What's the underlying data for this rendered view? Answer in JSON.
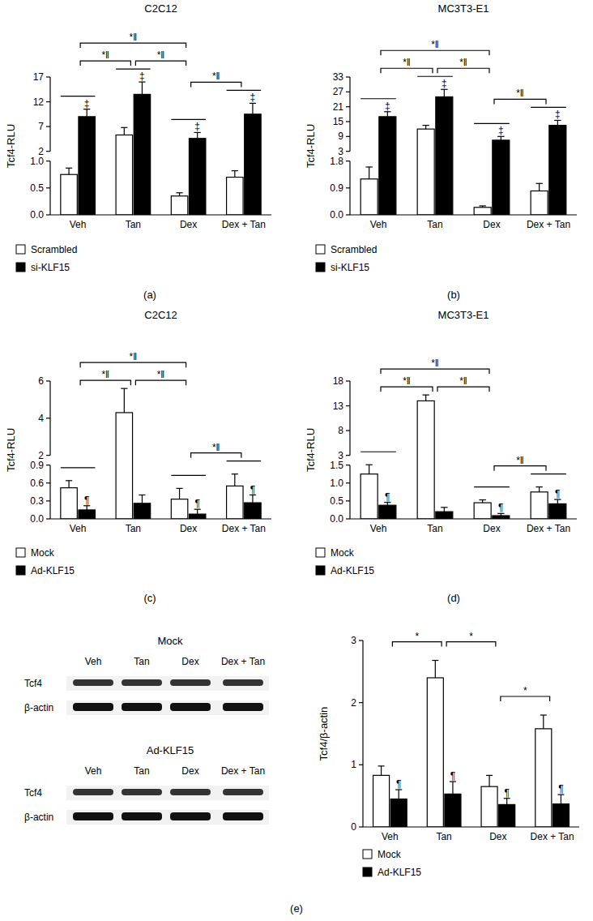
{
  "chart_data": [
    {
      "type": "bar",
      "panel_label": "(a)",
      "title": "C2C12",
      "y_label": "Tcf4-RLU",
      "categories": [
        "Veh",
        "Tan",
        "Dex",
        "Dex + Tan"
      ],
      "ylim": [
        0,
        17
      ],
      "axis_break": [
        1,
        2
      ],
      "yticks": [
        {
          "value": 0,
          "label": "0.0"
        },
        {
          "value": 0.5,
          "label": "0.5"
        },
        {
          "value": 1,
          "label": "1.0"
        },
        2,
        7,
        12,
        17
      ],
      "legend": "bottom left",
      "series": [
        {
          "name": "Scrambled",
          "color": "#ffffff",
          "values": [
            0.75,
            5.3,
            0.35,
            0.7
          ],
          "errors": [
            0.12,
            1.5,
            0.06,
            0.12
          ]
        },
        {
          "name": "si-KLF15",
          "color": "#000000",
          "values": [
            9,
            13.5,
            4.6,
            9.5
          ],
          "errors": [
            1.5,
            2.5,
            1.2,
            2.2
          ],
          "significance": [
            "‡",
            "‡",
            "‡",
            "‡"
          ]
        }
      ],
      "comparisons": [
        {
          "between": [
            "Veh",
            "Dex"
          ],
          "label": "*‖"
        },
        {
          "between": [
            "Veh",
            "Tan"
          ],
          "label": "*‖"
        },
        {
          "between": [
            "Tan",
            "Dex"
          ],
          "label": "*‖"
        },
        {
          "between": [
            "Dex",
            "Dex + Tan"
          ],
          "label": "*‖"
        }
      ]
    },
    {
      "type": "bar",
      "panel_label": "(b)",
      "title": "MC3T3-E1",
      "y_label": "Tcf4-RLU",
      "categories": [
        "Veh",
        "Tan",
        "Dex",
        "Dex + Tan"
      ],
      "ylim": [
        0,
        33
      ],
      "axis_break": [
        1.8,
        3
      ],
      "yticks": [
        {
          "value": 0,
          "label": "0.0"
        },
        {
          "value": 0.9,
          "label": "0.9"
        },
        {
          "value": 1.8,
          "label": "1.8"
        },
        3,
        9,
        15,
        21,
        27,
        33
      ],
      "legend": "bottom left",
      "series": [
        {
          "name": "Scrambled",
          "color": "#ffffff",
          "values": [
            1.2,
            12,
            0.25,
            0.8
          ],
          "errors": [
            0.4,
            1.5,
            0.05,
            0.25
          ]
        },
        {
          "name": "si-KLF15",
          "color": "#000000",
          "values": [
            17,
            25,
            7.5,
            13.5
          ],
          "errors": [
            2,
            3,
            1.5,
            2
          ],
          "significance": [
            "‡",
            "‡",
            "‡",
            "‡"
          ]
        }
      ],
      "comparisons": [
        {
          "between": [
            "Veh",
            "Dex"
          ],
          "label": "*‖"
        },
        {
          "between": [
            "Veh",
            "Tan"
          ],
          "label": "*‖"
        },
        {
          "between": [
            "Tan",
            "Dex"
          ],
          "label": "*‖"
        },
        {
          "between": [
            "Dex",
            "Dex + Tan"
          ],
          "label": "*‖"
        }
      ]
    },
    {
      "type": "bar",
      "panel_label": "(c)",
      "title": "C2C12",
      "y_label": "Tcf4-RLU",
      "categories": [
        "Veh",
        "Tan",
        "Dex",
        "Dex + Tan"
      ],
      "ylim": [
        0,
        6
      ],
      "axis_break": [
        0.9,
        2
      ],
      "yticks": [
        {
          "value": 0,
          "label": "0.0"
        },
        {
          "value": 0.3,
          "label": "0.3"
        },
        {
          "value": 0.6,
          "label": "0.6"
        },
        {
          "value": 0.9,
          "label": "0.9"
        },
        2,
        4,
        6
      ],
      "legend": "bottom left",
      "series": [
        {
          "name": "Mock",
          "color": "#ffffff",
          "values": [
            0.52,
            4.3,
            0.33,
            0.55
          ],
          "errors": [
            0.12,
            1.3,
            0.18,
            0.2
          ]
        },
        {
          "name": "Ad-KLF15",
          "color": "#000000",
          "values": [
            0.15,
            0.26,
            0.08,
            0.27
          ],
          "errors": [
            0.07,
            0.14,
            0.08,
            0.13
          ],
          "significance": [
            "¶",
            null,
            "¶",
            "¶"
          ]
        }
      ],
      "comparisons": [
        {
          "between": [
            "Veh",
            "Dex"
          ],
          "label": "*‖"
        },
        {
          "between": [
            "Veh",
            "Tan"
          ],
          "label": "*‖"
        },
        {
          "between": [
            "Tan",
            "Dex"
          ],
          "label": "*‖"
        },
        {
          "between": [
            "Dex",
            "Dex + Tan"
          ],
          "label": "*‖"
        }
      ]
    },
    {
      "type": "bar",
      "panel_label": "(d)",
      "title": "MC3T3-E1",
      "y_label": "Tcf4-RLU",
      "categories": [
        "Veh",
        "Tan",
        "Dex",
        "Dex + Tan"
      ],
      "ylim": [
        0,
        18
      ],
      "axis_break": [
        1.5,
        3
      ],
      "yticks": [
        {
          "value": 0,
          "label": "0.0"
        },
        {
          "value": 0.5,
          "label": "0.5"
        },
        {
          "value": 1,
          "label": "1.0"
        },
        {
          "value": 1.5,
          "label": "1.5"
        },
        3,
        8,
        13,
        18
      ],
      "legend": "bottom left",
      "series": [
        {
          "name": "Mock",
          "color": "#ffffff",
          "values": [
            1.25,
            14,
            0.45,
            0.75
          ],
          "errors": [
            0.3,
            1.2,
            0.08,
            0.14
          ]
        },
        {
          "name": "Ad-KLF15",
          "color": "#000000",
          "values": [
            0.38,
            0.2,
            0.09,
            0.42
          ],
          "errors": [
            0.08,
            0.12,
            0.06,
            0.12
          ],
          "significance": [
            "¶",
            null,
            "¶",
            "¶"
          ]
        }
      ],
      "comparisons": [
        {
          "between": [
            "Veh",
            "Dex"
          ],
          "label": "*‖"
        },
        {
          "between": [
            "Veh",
            "Tan"
          ],
          "label": "*‖"
        },
        {
          "between": [
            "Tan",
            "Dex"
          ],
          "label": "*‖"
        },
        {
          "between": [
            "Dex",
            "Dex + Tan"
          ],
          "label": "*‖"
        }
      ]
    },
    {
      "type": "bar",
      "panel_label": "(e)",
      "y_label": "Tcf4/β-actin",
      "categories": [
        "Veh",
        "Tan",
        "Dex",
        "Dex + Tan"
      ],
      "ylim": [
        0,
        3
      ],
      "yticks": [
        0,
        1,
        2,
        3
      ],
      "legend": "bottom left",
      "series": [
        {
          "name": "Mock",
          "color": "#ffffff",
          "values": [
            0.83,
            2.4,
            0.65,
            1.58
          ],
          "errors": [
            0.15,
            0.28,
            0.18,
            0.22
          ]
        },
        {
          "name": "Ad-KLF15",
          "color": "#000000",
          "values": [
            0.45,
            0.53,
            0.36,
            0.37
          ],
          "errors": [
            0.15,
            0.2,
            0.1,
            0.15
          ],
          "significance": [
            "¶",
            "¶",
            "¶",
            "¶"
          ]
        }
      ],
      "comparisons": [
        {
          "between": [
            "Veh",
            "Tan"
          ],
          "label": "*"
        },
        {
          "between": [
            "Tan",
            "Dex"
          ],
          "label": "*"
        },
        {
          "between": [
            "Dex",
            "Dex + Tan"
          ],
          "label": "*"
        }
      ]
    }
  ],
  "blot": {
    "groups": [
      {
        "title": "Mock",
        "lanes": [
          "Veh",
          "Tan",
          "Dex",
          "Dex + Tan"
        ],
        "rows": [
          "Tcf4",
          "β-actin"
        ]
      },
      {
        "title": "Ad-KLF15",
        "lanes": [
          "Veh",
          "Tan",
          "Dex",
          "Dex + Tan"
        ],
        "rows": [
          "Tcf4",
          "β-actin"
        ]
      }
    ]
  }
}
